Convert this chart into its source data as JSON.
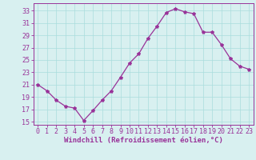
{
  "x": [
    0,
    1,
    2,
    3,
    4,
    5,
    6,
    7,
    8,
    9,
    10,
    11,
    12,
    13,
    14,
    15,
    16,
    17,
    18,
    19,
    20,
    21,
    22,
    23
  ],
  "y": [
    21.0,
    20.0,
    18.5,
    17.5,
    17.2,
    15.2,
    16.8,
    18.5,
    20.0,
    22.2,
    24.5,
    26.0,
    28.5,
    30.5,
    32.7,
    33.3,
    32.8,
    32.5,
    29.5,
    29.5,
    27.5,
    25.2,
    24.0,
    23.5
  ],
  "line_color": "#993399",
  "marker": "*",
  "marker_size": 3,
  "bg_color": "#d8f0f0",
  "grid_color": "#aadddd",
  "axis_color": "#993399",
  "tick_color": "#993399",
  "xlabel": "Windchill (Refroidissement éolien,°C)",
  "ylabel_ticks": [
    15,
    17,
    19,
    21,
    23,
    25,
    27,
    29,
    31,
    33
  ],
  "xlim": [
    -0.5,
    23.5
  ],
  "ylim": [
    14.5,
    34.2
  ],
  "xticks": [
    0,
    1,
    2,
    3,
    4,
    5,
    6,
    7,
    8,
    9,
    10,
    11,
    12,
    13,
    14,
    15,
    16,
    17,
    18,
    19,
    20,
    21,
    22,
    23
  ],
  "label_fontsize": 6.5,
  "tick_fontsize": 6.0
}
